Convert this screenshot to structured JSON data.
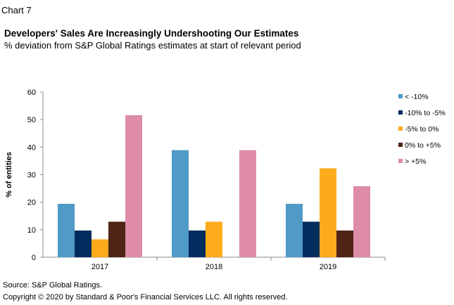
{
  "header": {
    "chart_number": "Chart 7",
    "title": "Developers' Sales Are Increasingly Undershooting Our Estimates",
    "subtitle": "% deviation from S&P Global Ratings estimates at start of relevant period"
  },
  "footer": {
    "source": "Source: S&P Global Ratings.",
    "copyright": "Copyright © 2020 by Standard & Poor's Financial Services LLC. All rights reserved."
  },
  "chart_data": {
    "type": "bar",
    "categories": [
      "2017",
      "2018",
      "2019"
    ],
    "ylabel": "% of entities",
    "ylim": [
      0,
      60
    ],
    "yticks": [
      0,
      10,
      20,
      30,
      40,
      50,
      60
    ],
    "grid": false,
    "legend_position": "right",
    "series": [
      {
        "name": "< -10%",
        "color": "#4f9ac6",
        "values": [
          19.4,
          38.9,
          19.4
        ]
      },
      {
        "name": "-10% to -5%",
        "color": "#002c5e",
        "values": [
          9.7,
          9.7,
          12.9
        ]
      },
      {
        "name": "-5% to 0%",
        "color": "#fcab1c",
        "values": [
          6.5,
          12.9,
          32.3
        ]
      },
      {
        "name": "0% to +5%",
        "color": "#4f2316",
        "values": [
          12.9,
          0,
          9.7
        ]
      },
      {
        "name": "> +5%",
        "color": "#de8ca8",
        "values": [
          51.6,
          38.9,
          25.8
        ]
      }
    ]
  }
}
